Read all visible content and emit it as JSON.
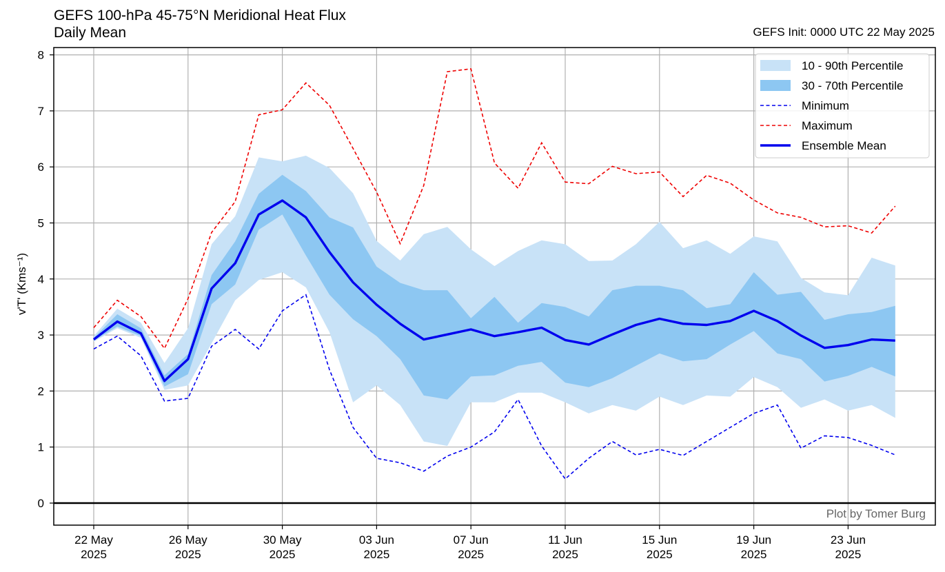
{
  "chart_data": {
    "type": "line",
    "title": "GEFS 100-hPa 45-75°N Meridional Heat Flux",
    "subtitle": "Daily Mean",
    "init_label": "GEFS Init: 0000 UTC 22 May 2025",
    "ylabel": "v'T' (Kms⁻¹)",
    "credit": "Plot by Tomer Burg",
    "ylim": [
      -0.4,
      8.1
    ],
    "yticks": [
      "0",
      "1",
      "2",
      "3",
      "4",
      "5",
      "6",
      "7",
      "8"
    ],
    "xticks": [
      {
        "day": 0,
        "top": "22 May",
        "bottom": "2025"
      },
      {
        "day": 4,
        "top": "26 May",
        "bottom": "2025"
      },
      {
        "day": 8,
        "top": "30 May",
        "bottom": "2025"
      },
      {
        "day": 12,
        "top": "03 Jun",
        "bottom": "2025"
      },
      {
        "day": 16,
        "top": "07 Jun",
        "bottom": "2025"
      },
      {
        "day": 20,
        "top": "11 Jun",
        "bottom": "2025"
      },
      {
        "day": 24,
        "top": "15 Jun",
        "bottom": "2025"
      },
      {
        "day": 28,
        "top": "19 Jun",
        "bottom": "2025"
      },
      {
        "day": 32,
        "top": "23 Jun",
        "bottom": "2025"
      }
    ],
    "x_dates": [
      "22 May",
      "23 May",
      "24 May",
      "25 May",
      "26 May",
      "27 May",
      "28 May",
      "29 May",
      "30 May",
      "31 May",
      "01 Jun",
      "02 Jun",
      "03 Jun",
      "04 Jun",
      "05 Jun",
      "06 Jun",
      "07 Jun",
      "08 Jun",
      "09 Jun",
      "10 Jun",
      "11 Jun",
      "12 Jun",
      "13 Jun",
      "14 Jun",
      "15 Jun",
      "16 Jun",
      "17 Jun",
      "18 Jun",
      "19 Jun",
      "20 Jun",
      "21 Jun",
      "22 Jun",
      "23 Jun",
      "24 Jun",
      "25 Jun"
    ],
    "grid": true,
    "legend_position": "top-right",
    "colors": {
      "band_10_90": "#c8e2f7",
      "band_30_70": "#8dc7f2",
      "minimum": "#0000ee",
      "maximum": "#ee0000",
      "mean": "#0000ee",
      "grid": "#b0b0b0"
    },
    "series": [
      {
        "name": "10 - 90th Percentile",
        "kind": "band",
        "lower": [
          2.88,
          3.12,
          2.95,
          2.02,
          2.1,
          2.85,
          3.62,
          3.98,
          4.12,
          3.85,
          3.05,
          1.8,
          2.1,
          1.75,
          1.1,
          1.02,
          1.8,
          1.8,
          1.97,
          1.97,
          1.8,
          1.6,
          1.75,
          1.65,
          1.9,
          1.75,
          1.92,
          1.9,
          2.25,
          2.07,
          1.7,
          1.85,
          1.65,
          1.75,
          1.52
        ],
        "upper": [
          2.98,
          3.47,
          3.22,
          2.5,
          3.12,
          4.62,
          5.12,
          6.17,
          6.1,
          6.2,
          5.98,
          5.53,
          4.68,
          4.33,
          4.8,
          4.93,
          4.53,
          4.23,
          4.5,
          4.69,
          4.62,
          4.32,
          4.33,
          4.62,
          5.02,
          4.55,
          4.69,
          4.45,
          4.76,
          4.67,
          4.02,
          3.76,
          3.71,
          4.38,
          4.24
        ]
      },
      {
        "name": "30 - 70th Percentile",
        "kind": "band",
        "lower": [
          2.9,
          3.15,
          2.98,
          2.08,
          2.3,
          3.55,
          3.9,
          4.88,
          5.15,
          4.42,
          3.72,
          3.28,
          2.98,
          2.57,
          1.92,
          1.85,
          2.26,
          2.28,
          2.45,
          2.52,
          2.15,
          2.07,
          2.23,
          2.45,
          2.67,
          2.53,
          2.57,
          2.83,
          3.07,
          2.67,
          2.57,
          2.17,
          2.27,
          2.43,
          2.26
        ]
      },
      {
        "name": "30 - 70th Percentile upper",
        "kind": "band_upper",
        "upper": [
          2.95,
          3.37,
          3.12,
          2.28,
          2.66,
          4.07,
          4.67,
          5.52,
          5.86,
          5.57,
          5.1,
          4.92,
          4.22,
          3.93,
          3.8,
          3.8,
          3.3,
          3.68,
          3.22,
          3.57,
          3.5,
          3.33,
          3.8,
          3.88,
          3.88,
          3.8,
          3.48,
          3.55,
          4.12,
          3.72,
          3.77,
          3.27,
          3.37,
          3.41,
          3.52
        ]
      },
      {
        "name": "Minimum",
        "kind": "dashed",
        "values": [
          2.75,
          2.98,
          2.63,
          1.82,
          1.87,
          2.8,
          3.1,
          2.75,
          3.43,
          3.72,
          2.38,
          1.35,
          0.8,
          0.72,
          0.57,
          0.84,
          1,
          1.27,
          1.85,
          1.02,
          0.43,
          0.8,
          1.1,
          0.86,
          0.96,
          0.85,
          1.1,
          1.35,
          1.6,
          1.75,
          0.98,
          1.2,
          1.17,
          1.03,
          0.86
        ]
      },
      {
        "name": "Maximum",
        "kind": "dashed",
        "values": [
          3.13,
          3.62,
          3.33,
          2.76,
          3.65,
          4.83,
          5.38,
          6.93,
          7.02,
          7.5,
          7.1,
          6.33,
          5.55,
          4.63,
          5.67,
          7.7,
          7.75,
          6.07,
          5.62,
          6.43,
          5.73,
          5.7,
          6.01,
          5.88,
          5.91,
          5.47,
          5.85,
          5.71,
          5.41,
          5.18,
          5.1,
          4.93,
          4.95,
          4.82,
          5.3
        ]
      },
      {
        "name": "Ensemble Mean",
        "kind": "solid",
        "values": [
          2.92,
          3.24,
          3.03,
          2.18,
          2.57,
          3.83,
          4.28,
          5.15,
          5.4,
          5.1,
          4.48,
          3.94,
          3.54,
          3.2,
          2.92,
          3.01,
          3.1,
          2.98,
          3.05,
          3.13,
          2.91,
          2.83,
          3.01,
          3.18,
          3.29,
          3.2,
          3.18,
          3.25,
          3.43,
          3.25,
          2.99,
          2.77,
          2.82,
          2.92,
          2.9
        ]
      }
    ],
    "legend": [
      {
        "label": "10 - 90th Percentile",
        "swatch": "band_10_90"
      },
      {
        "label": "30 - 70th Percentile",
        "swatch": "band_30_70"
      },
      {
        "label": "Minimum",
        "swatch": "minimum"
      },
      {
        "label": "Maximum",
        "swatch": "maximum"
      },
      {
        "label": "Ensemble Mean",
        "swatch": "mean"
      }
    ]
  }
}
